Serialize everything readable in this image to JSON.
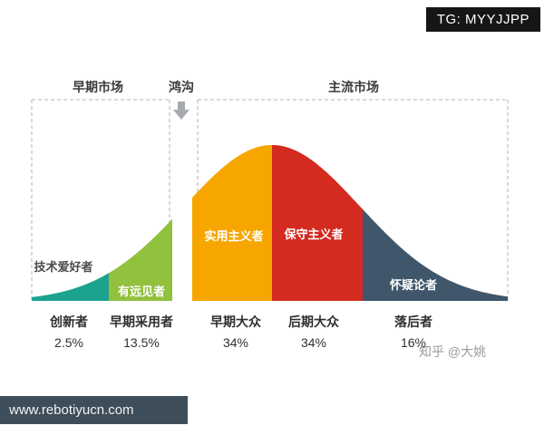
{
  "badge": {
    "text": "TG: MYYJJPP"
  },
  "markets": {
    "early": "早期市场",
    "chasm": "鸿沟",
    "mainstream": "主流市场"
  },
  "watermark": "知乎 @大姚",
  "footer": {
    "url": "www.rebotiyucn.com"
  },
  "chart_data": {
    "type": "area",
    "x_groups": [
      "早期市场",
      "鸿沟",
      "主流市场"
    ],
    "segments": [
      {
        "label": "创新者",
        "percent": "2.5%",
        "value": 2.5,
        "persona": "技术爱好者",
        "color": "#1ba390"
      },
      {
        "label": "早期采用者",
        "percent": "13.5%",
        "value": 13.5,
        "persona": "有远见者",
        "color": "#92c13e"
      },
      {
        "label": "早期大众",
        "percent": "34%",
        "value": 34,
        "persona": "实用主义者",
        "color": "#f7a600"
      },
      {
        "label": "后期大众",
        "percent": "34%",
        "value": 34,
        "persona": "保守主义者",
        "color": "#d32b20"
      },
      {
        "label": "落后者",
        "percent": "16%",
        "value": 16,
        "persona": "怀疑论者",
        "color": "#3f566b"
      }
    ]
  }
}
